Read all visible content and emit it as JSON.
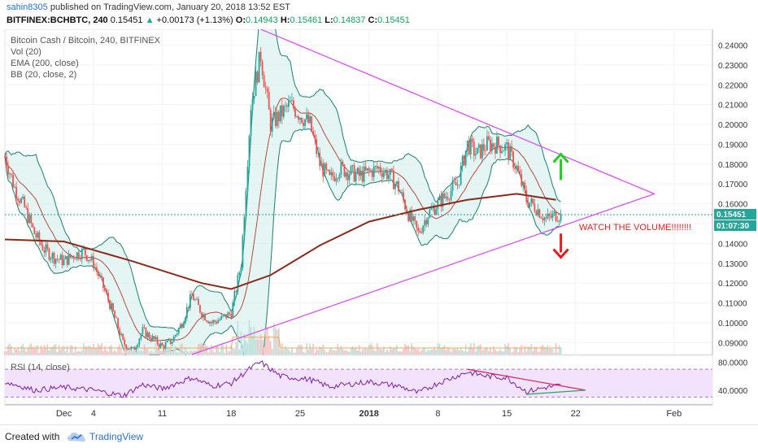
{
  "header": {
    "author": "sahin8305",
    "published_text": "published on TradingView.com, January 20, 2018 13:52 EST",
    "symbol_line": "BITFINEX:BCHBTC, 240",
    "last": "0.15451",
    "change": "+0.00173 (+1.13%)",
    "o_label": "O:",
    "o": "0.14943",
    "h_label": "H:",
    "h": "0.15461",
    "l_label": "L:",
    "l": "0.14837",
    "c_label": "C:",
    "c": "0.15451"
  },
  "legend": {
    "title": "Bitcoin Cash / Bitcoin, 240, BITFINEX",
    "vol": "Vol (20)",
    "ema": "EMA (200, close)",
    "bb": "BB (20, close, 2)"
  },
  "rsi_label": "RSI (14, close)",
  "annotation": "WATCH THE VOLUME!!!!!!!!",
  "price_tag": "0.15451",
  "time_tag": "01:07:30",
  "footer": {
    "created_with": "Created with",
    "brand": "TradingView"
  },
  "colors": {
    "up": "#26a69a",
    "down": "#ef5350",
    "bb": "#2b8a7a",
    "bb_fill": "#d9f1ee",
    "ema": "#8b2a1a",
    "triangle": "#e040fb",
    "arrow_up": "#22cc22",
    "arrow_down": "#e02020",
    "rsi": "#7b1fa2",
    "rsi_band": "#f3e2fb",
    "tag": "#26a69a"
  },
  "chart_data": [
    {
      "type": "candlestick",
      "title": "Bitcoin Cash / Bitcoin, 240, BITFINEX",
      "ylim": [
        0.084,
        0.248
      ],
      "y_ticks": [
        "0.24000",
        "0.23000",
        "0.22000",
        "0.21000",
        "0.20000",
        "0.19000",
        "0.18000",
        "0.17000",
        "0.16000",
        "0.15000",
        "0.14000",
        "0.13000",
        "0.12000",
        "0.11000",
        "0.10000",
        "0.09000"
      ],
      "x_ticks": [
        "Dec",
        "4",
        "11",
        "18",
        "25",
        "2018",
        "8",
        "15",
        "22",
        "Feb"
      ],
      "x_tick_dates": [
        "2017-12-01",
        "2017-12-04",
        "2017-12-11",
        "2017-12-18",
        "2017-12-25",
        "2018-01-01",
        "2018-01-08",
        "2018-01-15",
        "2018-01-22",
        "2018-02-01"
      ],
      "close_path": [
        [
          "2017-11-25",
          0.184
        ],
        [
          "2017-11-26",
          0.168
        ],
        [
          "2017-11-27",
          0.158
        ],
        [
          "2017-11-28",
          0.145
        ],
        [
          "2017-11-29",
          0.137
        ],
        [
          "2017-11-30",
          0.133
        ],
        [
          "2017-12-01",
          0.131
        ],
        [
          "2017-12-02",
          0.134
        ],
        [
          "2017-12-03",
          0.136
        ],
        [
          "2017-12-04",
          0.13
        ],
        [
          "2017-12-05",
          0.118
        ],
        [
          "2017-12-06",
          0.105
        ],
        [
          "2017-12-07",
          0.09
        ],
        [
          "2017-12-08",
          0.086
        ],
        [
          "2017-12-09",
          0.096
        ],
        [
          "2017-12-10",
          0.092
        ],
        [
          "2017-12-11",
          0.088
        ],
        [
          "2017-12-12",
          0.091
        ],
        [
          "2017-12-13",
          0.1
        ],
        [
          "2017-12-14",
          0.114
        ],
        [
          "2017-12-15",
          0.105
        ],
        [
          "2017-12-16",
          0.1
        ],
        [
          "2017-12-17",
          0.102
        ],
        [
          "2017-12-18",
          0.105
        ],
        [
          "2017-12-19",
          0.13
        ],
        [
          "2017-12-20",
          0.21
        ],
        [
          "2017-12-21",
          0.235
        ],
        [
          "2017-12-22",
          0.2
        ],
        [
          "2017-12-23",
          0.205
        ],
        [
          "2017-12-24",
          0.21
        ],
        [
          "2017-12-25",
          0.205
        ],
        [
          "2017-12-26",
          0.2
        ],
        [
          "2017-12-27",
          0.18
        ],
        [
          "2017-12-28",
          0.172
        ],
        [
          "2017-12-29",
          0.178
        ],
        [
          "2017-12-30",
          0.176
        ],
        [
          "2017-12-31",
          0.174
        ],
        [
          "2018-01-01",
          0.176
        ],
        [
          "2018-01-02",
          0.178
        ],
        [
          "2018-01-03",
          0.175
        ],
        [
          "2018-01-04",
          0.168
        ],
        [
          "2018-01-05",
          0.155
        ],
        [
          "2018-01-06",
          0.145
        ],
        [
          "2018-01-07",
          0.155
        ],
        [
          "2018-01-08",
          0.16
        ],
        [
          "2018-01-09",
          0.165
        ],
        [
          "2018-01-10",
          0.17
        ],
        [
          "2018-01-11",
          0.19
        ],
        [
          "2018-01-12",
          0.185
        ],
        [
          "2018-01-13",
          0.19
        ],
        [
          "2018-01-14",
          0.19
        ],
        [
          "2018-01-15",
          0.188
        ],
        [
          "2018-01-16",
          0.178
        ],
        [
          "2018-01-17",
          0.162
        ],
        [
          "2018-01-18",
          0.158
        ],
        [
          "2018-01-19",
          0.152
        ],
        [
          "2018-01-20",
          0.15451
        ]
      ],
      "ema_200": [
        [
          "2017-11-25",
          0.142
        ],
        [
          "2017-12-01",
          0.141
        ],
        [
          "2017-12-08",
          0.131
        ],
        [
          "2017-12-15",
          0.12
        ],
        [
          "2017-12-18",
          0.117
        ],
        [
          "2017-12-22",
          0.124
        ],
        [
          "2017-12-27",
          0.139
        ],
        [
          "2018-01-01",
          0.151
        ],
        [
          "2018-01-06",
          0.157
        ],
        [
          "2018-01-11",
          0.162
        ],
        [
          "2018-01-16",
          0.165
        ],
        [
          "2018-01-20",
          0.162
        ]
      ],
      "triangle": {
        "upper": [
          [
            "2017-12-21",
            0.248
          ],
          [
            "2018-01-30",
            0.165
          ]
        ],
        "lower": [
          [
            "2017-12-14",
            0.084
          ],
          [
            "2018-01-30",
            0.165
          ]
        ]
      },
      "annotations": [
        {
          "type": "arrow-up",
          "date": "2018-01-20",
          "from": 0.172,
          "to": 0.185
        },
        {
          "type": "arrow-down",
          "date": "2018-01-20",
          "from": 0.145,
          "to": 0.133
        },
        {
          "type": "text",
          "text": "WATCH THE VOLUME!!!!!!!!"
        }
      ]
    },
    {
      "type": "line",
      "title": "RSI (14, close)",
      "ylim": [
        20,
        90
      ],
      "y_ticks": [
        "80.0000",
        "40.0000"
      ],
      "band": [
        30,
        70
      ],
      "series": [
        {
          "values": [
            [
              "2017-11-25",
              52
            ],
            [
              "2017-11-28",
              40
            ],
            [
              "2017-12-01",
              44
            ],
            [
              "2017-12-04",
              40
            ],
            [
              "2017-12-07",
              32
            ],
            [
              "2017-12-09",
              48
            ],
            [
              "2017-12-11",
              42
            ],
            [
              "2017-12-14",
              58
            ],
            [
              "2017-12-16",
              46
            ],
            [
              "2017-12-18",
              50
            ],
            [
              "2017-12-20",
              72
            ],
            [
              "2017-12-21",
              80
            ],
            [
              "2017-12-23",
              60
            ],
            [
              "2017-12-26",
              55
            ],
            [
              "2017-12-28",
              45
            ],
            [
              "2018-01-01",
              52
            ],
            [
              "2018-01-04",
              46
            ],
            [
              "2018-01-06",
              36
            ],
            [
              "2018-01-08",
              50
            ],
            [
              "2018-01-11",
              66
            ],
            [
              "2018-01-13",
              60
            ],
            [
              "2018-01-15",
              58
            ],
            [
              "2018-01-17",
              38
            ],
            [
              "2018-01-19",
              44
            ],
            [
              "2018-01-20",
              46
            ]
          ]
        }
      ]
    }
  ]
}
